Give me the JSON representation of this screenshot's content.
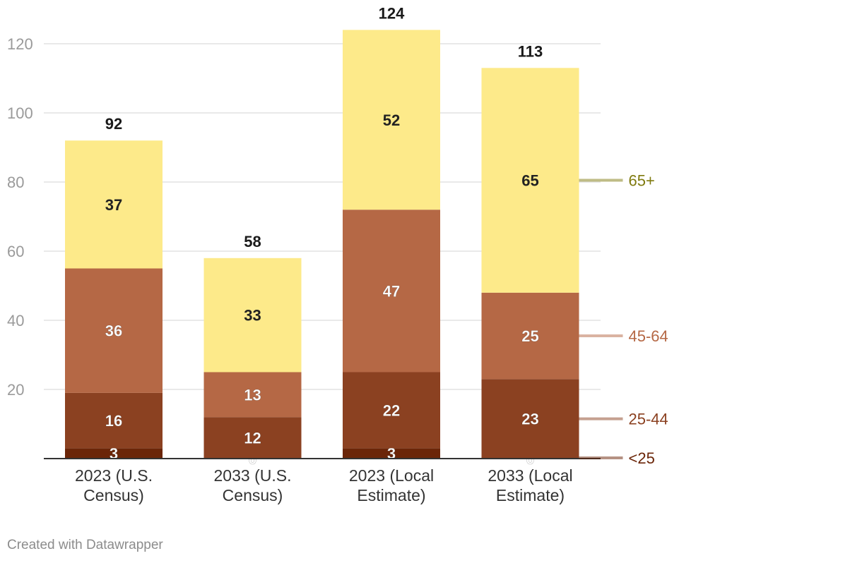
{
  "chart_data": {
    "type": "bar",
    "stacked": true,
    "categories": [
      [
        "2023 (U.S.",
        "Census)"
      ],
      [
        "2033 (U.S.",
        "Census)"
      ],
      [
        "2023 (Local",
        "Estimate)"
      ],
      [
        "2033 (Local",
        "Estimate)"
      ]
    ],
    "series": [
      {
        "name": "<25",
        "color": "#6b2508",
        "label_color": "#ffffff",
        "legend_color": "#6b2508",
        "values": [
          3,
          0,
          3,
          0
        ]
      },
      {
        "name": "25-44",
        "color": "#8b4121",
        "label_color": "#ffffff",
        "legend_color": "#8b4121",
        "values": [
          16,
          12,
          22,
          23
        ]
      },
      {
        "name": "45-64",
        "color": "#b56845",
        "label_color": "#ffffff",
        "legend_color": "#b56845",
        "values": [
          36,
          13,
          47,
          25
        ]
      },
      {
        "name": "65+",
        "color": "#fdea8a",
        "label_color": "#222222",
        "legend_color": "#7f7a0e",
        "values": [
          37,
          33,
          52,
          65
        ]
      }
    ],
    "totals": [
      92,
      58,
      124,
      113
    ],
    "yticks": [
      20,
      40,
      60,
      80,
      100,
      120
    ],
    "ylim": [
      0,
      124
    ],
    "grid": true,
    "legend": "right, inline labels",
    "title": "",
    "xlabel": "",
    "ylabel": ""
  },
  "footer": "Created with Datawrapper"
}
